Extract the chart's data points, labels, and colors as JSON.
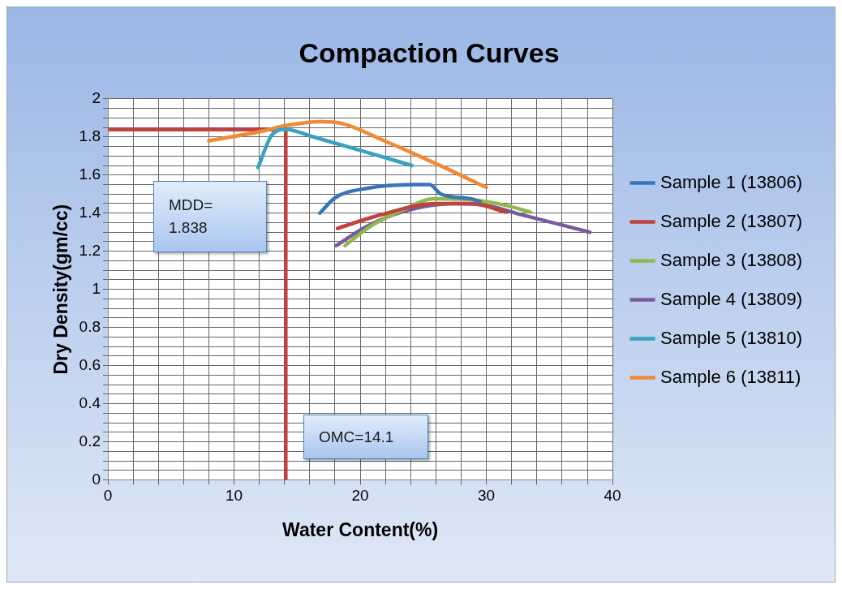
{
  "chart_data": {
    "type": "line",
    "title": "Compaction Curves",
    "xlabel": "Water Content(%)",
    "ylabel": "Dry Density(gm/cc)",
    "xlim": [
      0,
      40
    ],
    "ylim": [
      0,
      2
    ],
    "xticks": [
      0,
      {
        "value": 2,
        "label": null
      },
      {
        "value": 4,
        "label": null
      },
      {
        "value": 6,
        "label": null
      },
      {
        "value": 8,
        "label": null
      },
      10,
      {
        "value": 12,
        "label": null
      },
      {
        "value": 14,
        "label": null
      },
      {
        "value": 16,
        "label": null
      },
      {
        "value": 18,
        "label": null
      },
      20,
      {
        "value": 22,
        "label": null
      },
      {
        "value": 24,
        "label": null
      },
      {
        "value": 26,
        "label": null
      },
      {
        "value": 28,
        "label": null
      },
      30,
      {
        "value": 32,
        "label": null
      },
      {
        "value": 34,
        "label": null
      },
      {
        "value": 36,
        "label": null
      },
      {
        "value": 38,
        "label": null
      },
      40
    ],
    "yticks": [
      0,
      {
        "value": 0.05,
        "label": null
      },
      {
        "value": 0.1,
        "label": null
      },
      {
        "value": 0.15,
        "label": null
      },
      0.2,
      {
        "value": 0.25,
        "label": null
      },
      {
        "value": 0.3,
        "label": null
      },
      {
        "value": 0.35,
        "label": null
      },
      0.4,
      {
        "value": 0.45,
        "label": null
      },
      {
        "value": 0.5,
        "label": null
      },
      {
        "value": 0.55,
        "label": null
      },
      0.6,
      {
        "value": 0.65,
        "label": null
      },
      {
        "value": 0.7,
        "label": null
      },
      {
        "value": 0.75,
        "label": null
      },
      0.8,
      {
        "value": 0.85,
        "label": null
      },
      {
        "value": 0.9,
        "label": null
      },
      {
        "value": 0.95,
        "label": null
      },
      1,
      {
        "value": 1.05,
        "label": null
      },
      {
        "value": 1.1,
        "label": null
      },
      {
        "value": 1.15,
        "label": null
      },
      1.2,
      {
        "value": 1.25,
        "label": null
      },
      {
        "value": 1.3,
        "label": null
      },
      {
        "value": 1.35,
        "label": null
      },
      1.4,
      {
        "value": 1.45,
        "label": null
      },
      {
        "value": 1.5,
        "label": null
      },
      {
        "value": 1.55,
        "label": null
      },
      1.6,
      {
        "value": 1.65,
        "label": null
      },
      {
        "value": 1.7,
        "label": null
      },
      {
        "value": 1.75,
        "label": null
      },
      1.8,
      {
        "value": 1.85,
        "label": null
      },
      {
        "value": 1.9,
        "label": null
      },
      {
        "value": 1.95,
        "label": null
      },
      2
    ],
    "grid": true,
    "legend": "right",
    "marker": "none",
    "line_style": "solid",
    "series": [
      {
        "name": "Sample 1 (13806)",
        "color": "#3a74b8",
        "x": [
          16.8,
          18.0,
          20.5,
          24.6,
          25.5,
          26.4,
          28.8,
          29.5
        ],
        "values": [
          1.4,
          1.48,
          1.53,
          1.55,
          1.55,
          1.5,
          1.475,
          1.46
        ]
      },
      {
        "name": "Sample 2 (13807)",
        "color": "#c0413e",
        "x": [
          18.2,
          21.3,
          26.0,
          28.8,
          31.6
        ],
        "values": [
          1.32,
          1.385,
          1.45,
          1.45,
          1.405
        ]
      },
      {
        "name": "Sample 3 (13808)",
        "color": "#8dba4a",
        "x": [
          18.8,
          20.8,
          23.5,
          25.8,
          28.8,
          31.6,
          33.5
        ],
        "values": [
          1.23,
          1.33,
          1.42,
          1.475,
          1.47,
          1.44,
          1.405
        ]
      },
      {
        "name": "Sample 4 (13809)",
        "color": "#7a5a9e",
        "x": [
          18.1,
          20.5,
          23.5,
          27.4,
          29.6,
          32.9,
          38.2
        ],
        "values": [
          1.23,
          1.33,
          1.41,
          1.45,
          1.445,
          1.39,
          1.3
        ]
      },
      {
        "name": "Sample 5 (13810)",
        "color": "#37a3bf",
        "x": [
          11.9,
          13.0,
          14.1,
          16.3,
          20.5,
          24.1
        ],
        "values": [
          1.64,
          1.81,
          1.84,
          1.8,
          1.72,
          1.65
        ]
      },
      {
        "name": "Sample 6 (13811)",
        "color": "#f08a34",
        "x": [
          8.0,
          12.2,
          14.1,
          16.9,
          18.6,
          21.9,
          26.0,
          30.0
        ],
        "values": [
          1.78,
          1.83,
          1.86,
          1.88,
          1.87,
          1.78,
          1.66,
          1.535
        ]
      },
      {
        "color": "#c0413e",
        "x": [
          0,
          14.1,
          14.1
        ],
        "values": [
          1.838,
          1.838,
          0
        ]
      }
    ],
    "annotations": [
      "MDD=\n1.838",
      "OMC=14.1"
    ]
  }
}
